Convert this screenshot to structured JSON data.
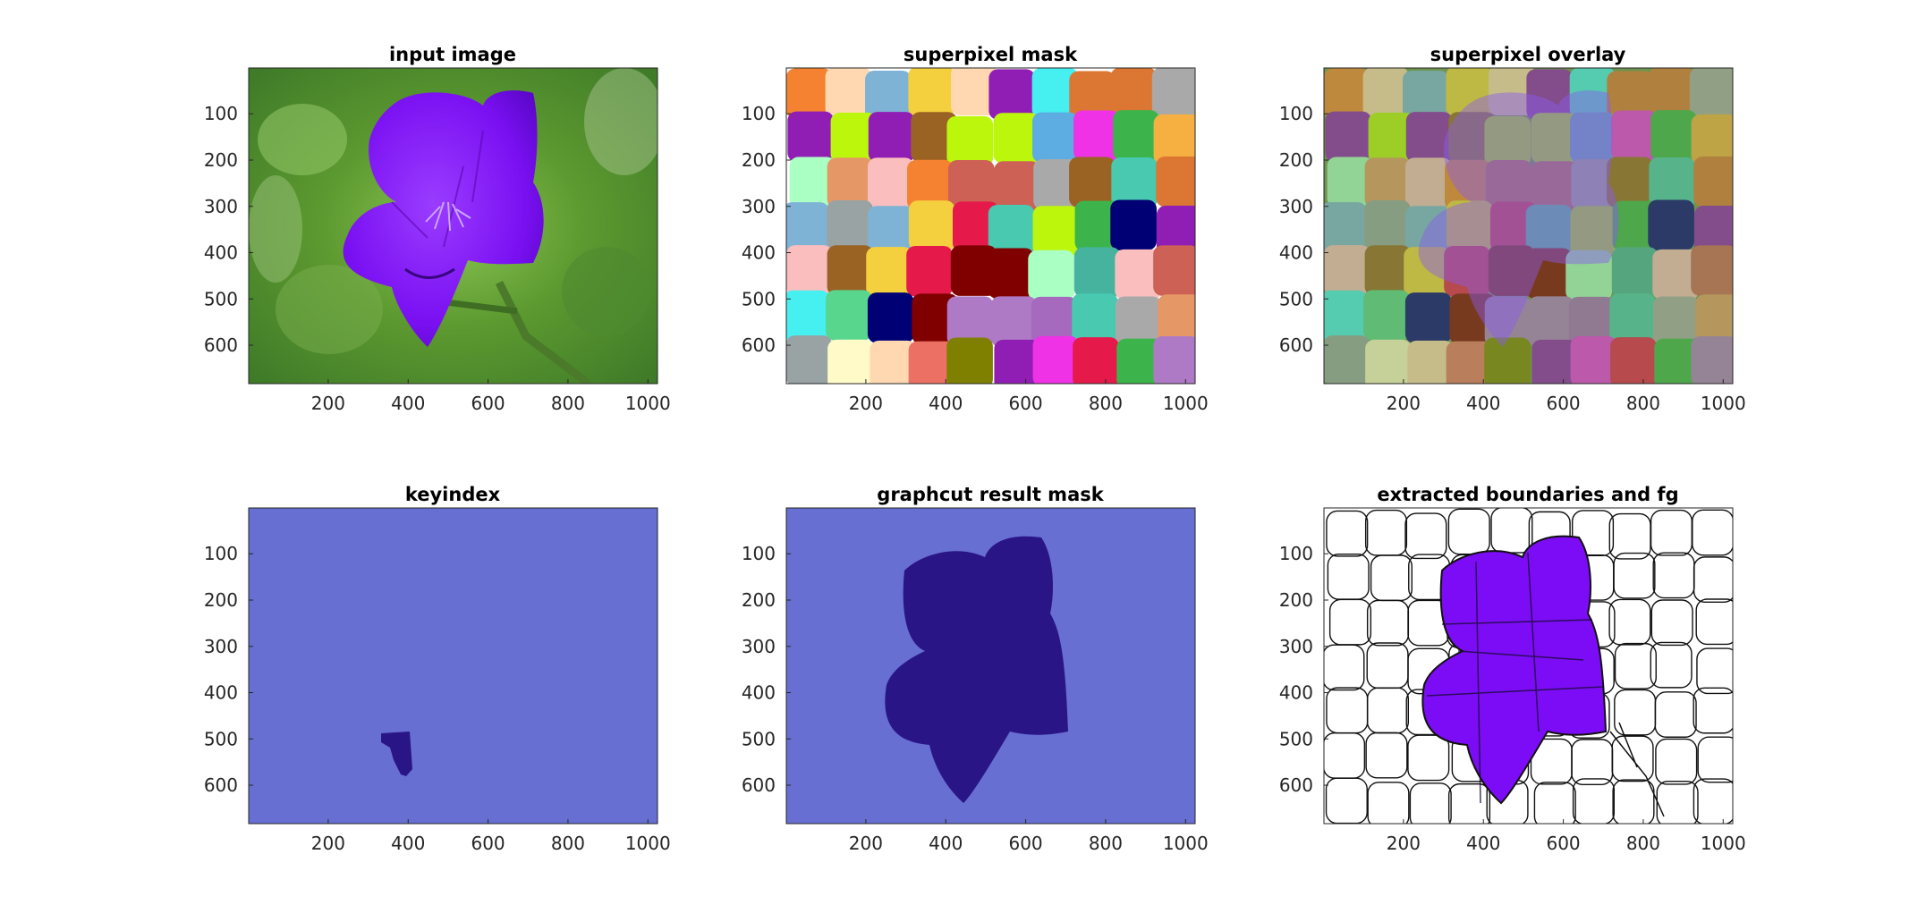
{
  "chart_data": [
    {
      "type": "image",
      "title": "input image",
      "content": "purple flower on green background",
      "xlim": [
        1,
        1024
      ],
      "ylim": [
        1,
        683
      ],
      "y_reversed": true,
      "xticks": [
        200,
        400,
        600,
        800,
        1000
      ],
      "yticks": [
        100,
        200,
        300,
        400,
        500,
        600
      ]
    },
    {
      "type": "image",
      "title": "superpixel mask",
      "content": "random colored superpixel label map",
      "xlim": [
        1,
        1024
      ],
      "ylim": [
        1,
        683
      ],
      "y_reversed": true,
      "xticks": [
        200,
        400,
        600,
        800,
        1000
      ],
      "yticks": [
        100,
        200,
        300,
        400,
        500,
        600
      ]
    },
    {
      "type": "image",
      "title": "superpixel overlay",
      "content": "superpixel colors blended over input image",
      "xlim": [
        1,
        1024
      ],
      "ylim": [
        1,
        683
      ],
      "y_reversed": true,
      "xticks": [
        200,
        400,
        600,
        800,
        1000
      ],
      "yticks": [
        100,
        200,
        300,
        400,
        500,
        600
      ]
    },
    {
      "type": "image",
      "title": "keyindex",
      "content": "binary mask with small seed region",
      "xlim": [
        1,
        1024
      ],
      "ylim": [
        1,
        683
      ],
      "y_reversed": true,
      "xticks": [
        200,
        400,
        600,
        800,
        1000
      ],
      "yticks": [
        100,
        200,
        300,
        400,
        500,
        600
      ]
    },
    {
      "type": "image",
      "title": "graphcut result mask",
      "content": "binary mask of segmented flower",
      "xlim": [
        1,
        1024
      ],
      "ylim": [
        1,
        683
      ],
      "y_reversed": true,
      "xticks": [
        200,
        400,
        600,
        800,
        1000
      ],
      "yticks": [
        100,
        200,
        300,
        400,
        500,
        600
      ]
    },
    {
      "type": "image",
      "title": "extracted boundaries and fg",
      "content": "superpixel boundaries with extracted flower foreground",
      "xlim": [
        1,
        1024
      ],
      "ylim": [
        1,
        683
      ],
      "y_reversed": true,
      "xticks": [
        200,
        400,
        600,
        800,
        1000
      ],
      "yticks": [
        100,
        200,
        300,
        400,
        500,
        600
      ]
    }
  ],
  "colors": {
    "mask_background": "#676fd3",
    "mask_foreground": "#2a1587",
    "flower": "#7c0cf5",
    "foliage": "#5a9a35"
  }
}
